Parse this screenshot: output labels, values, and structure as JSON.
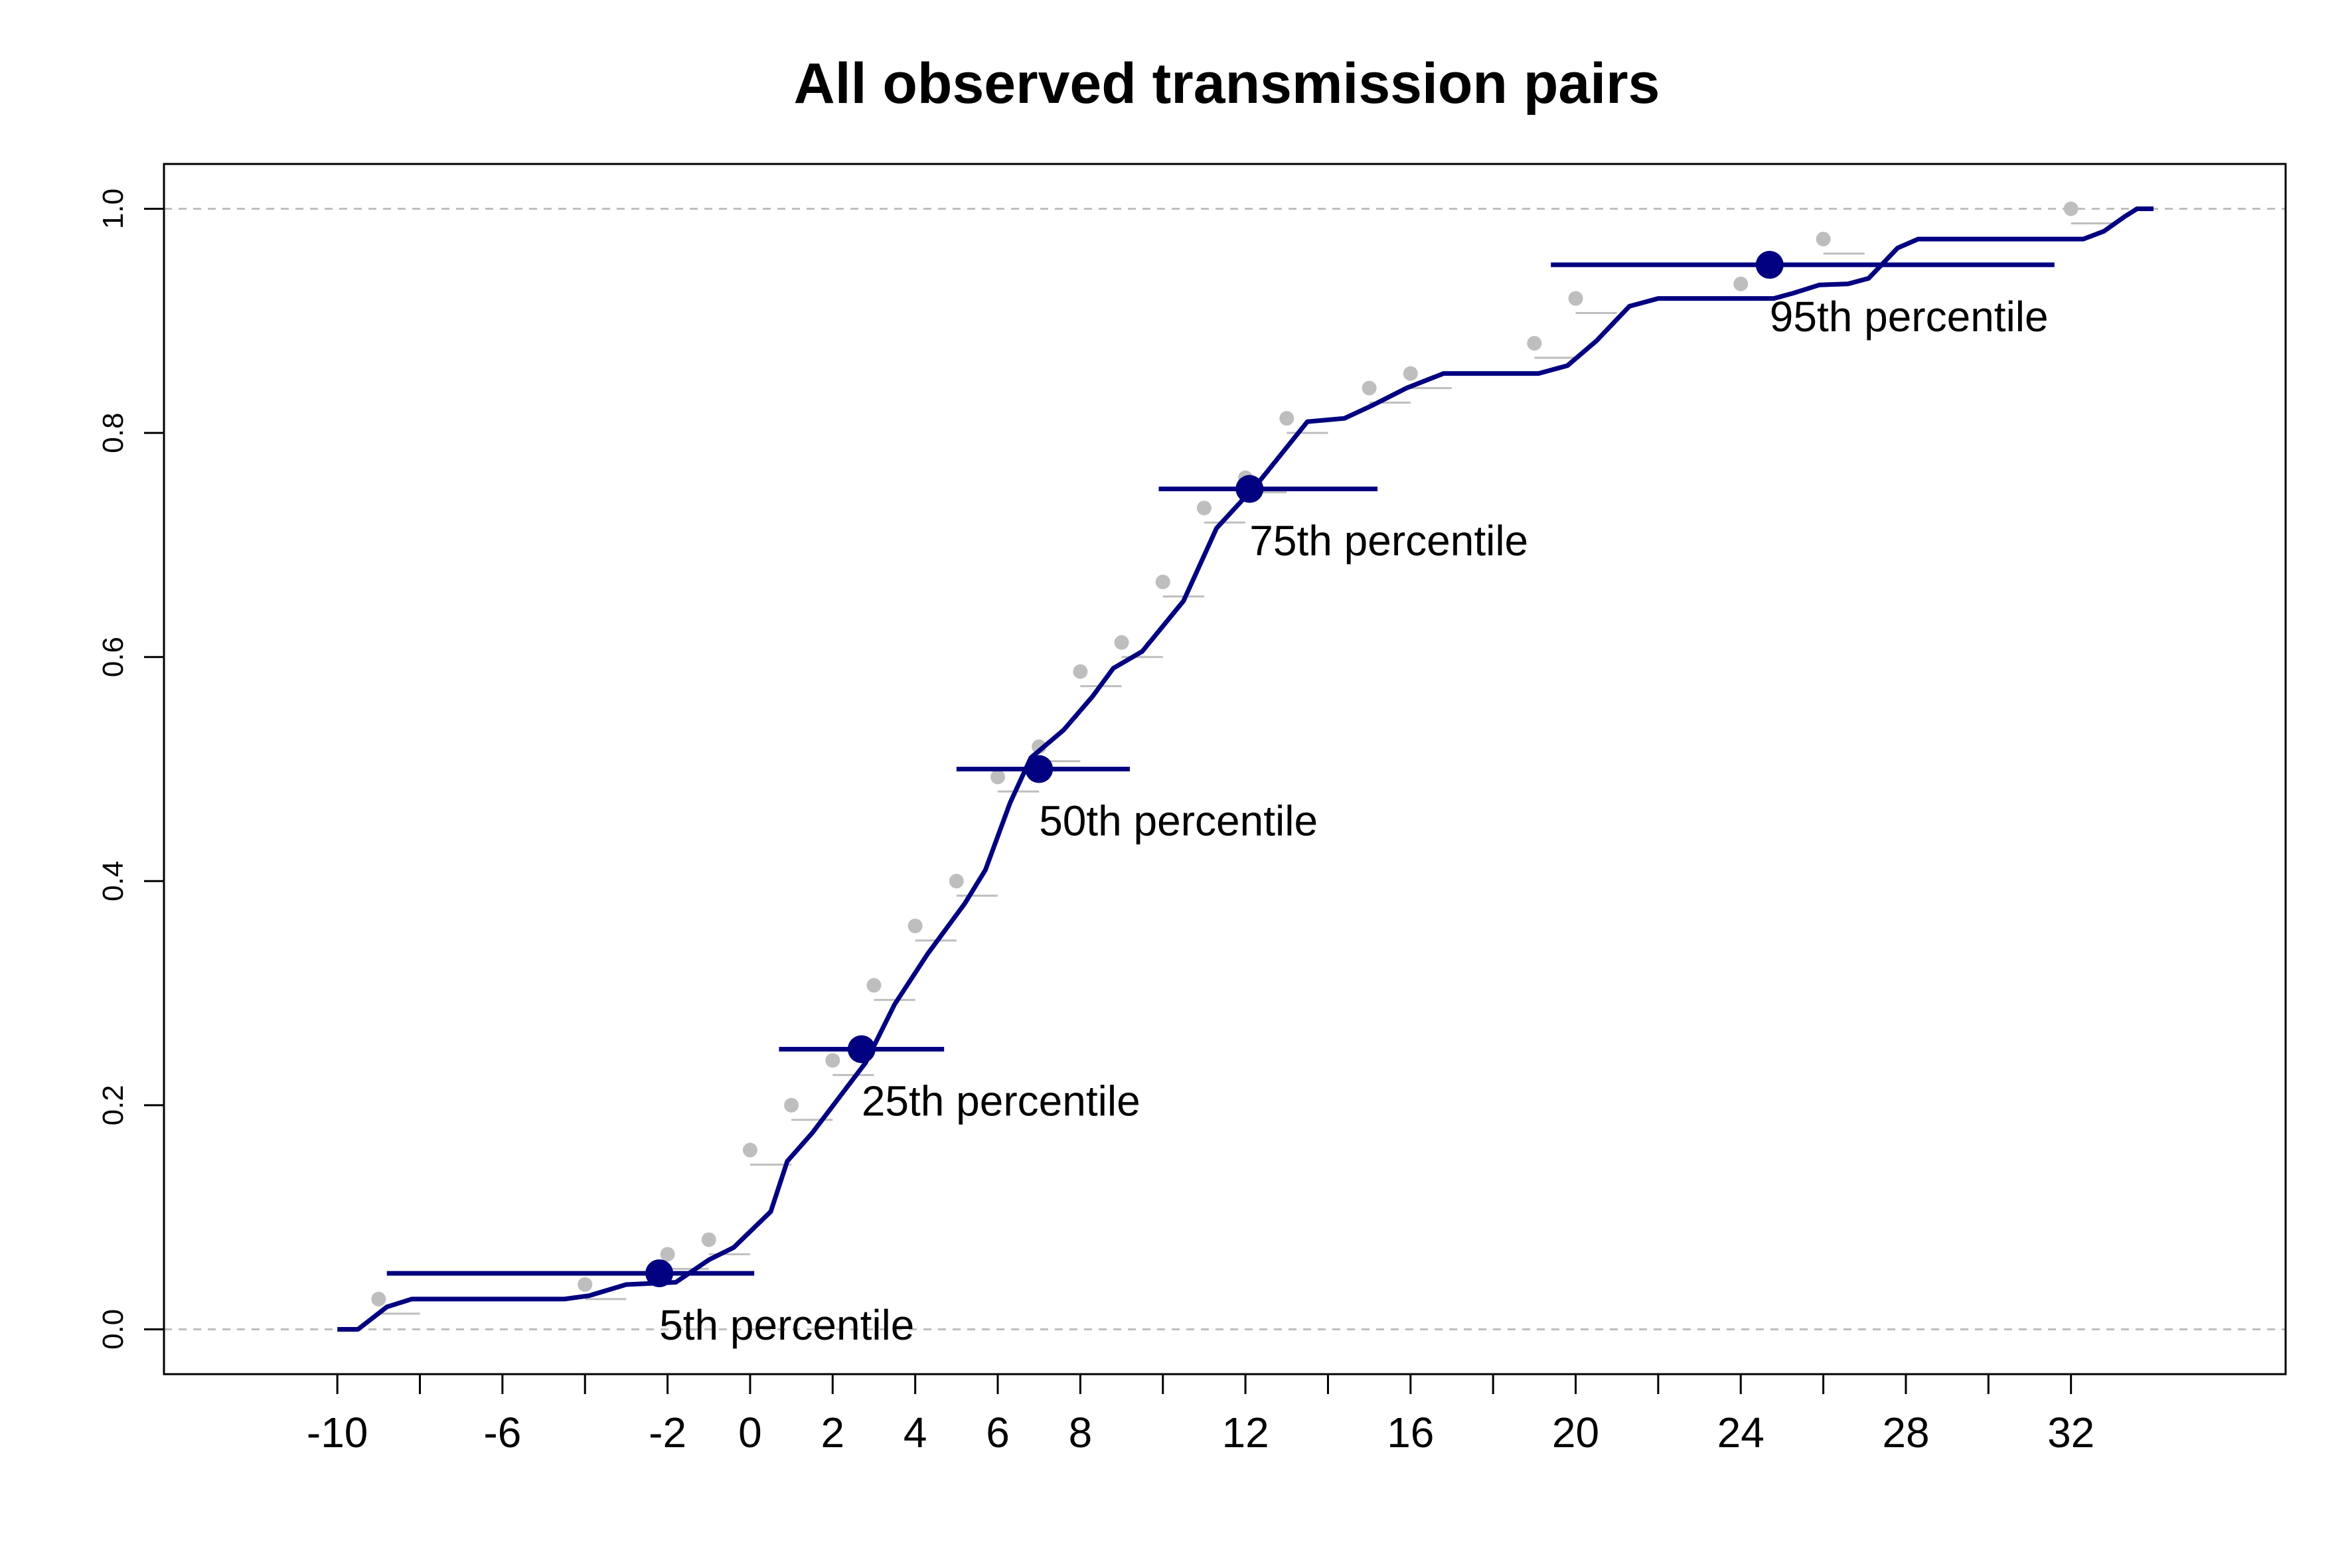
{
  "chart_data": {
    "type": "line",
    "title": "All observed transmission pairs",
    "xlabel": "",
    "ylabel": "",
    "xlim": [
      -14.2,
      37.2
    ],
    "ylim": [
      -0.04,
      1.04
    ],
    "x_tick_values": [
      -10,
      -8,
      -6,
      -4,
      -2,
      0,
      2,
      4,
      6,
      8,
      10,
      12,
      14,
      16,
      18,
      20,
      22,
      24,
      26,
      28,
      30,
      32
    ],
    "x_tick_labels": [
      {
        "value": -10,
        "label": "-10"
      },
      {
        "value": -6,
        "label": "-6"
      },
      {
        "value": -2,
        "label": "-2"
      },
      {
        "value": 0,
        "label": "0"
      },
      {
        "value": 2,
        "label": "2"
      },
      {
        "value": 4,
        "label": "4"
      },
      {
        "value": 6,
        "label": "6"
      },
      {
        "value": 8,
        "label": "8"
      },
      {
        "value": 12,
        "label": "12"
      },
      {
        "value": 16,
        "label": "16"
      },
      {
        "value": 20,
        "label": "20"
      },
      {
        "value": 24,
        "label": "24"
      },
      {
        "value": 28,
        "label": "28"
      },
      {
        "value": 32,
        "label": "32"
      }
    ],
    "y_ticks": [
      {
        "value": 0.0,
        "label": "0.0"
      },
      {
        "value": 0.2,
        "label": "0.2"
      },
      {
        "value": 0.4,
        "label": "0.4"
      },
      {
        "value": 0.6,
        "label": "0.6"
      },
      {
        "value": 0.8,
        "label": "0.8"
      },
      {
        "value": 1.0,
        "label": "1.0"
      }
    ],
    "reference_lines": [
      0.0,
      1.0
    ],
    "grid": false,
    "colors": {
      "curve": "#000080",
      "observed": "#bebebe",
      "reference": "#bebebe",
      "axis": "#000000"
    },
    "observed_points": [
      {
        "x": -9,
        "y": 0.027
      },
      {
        "x": -4,
        "y": 0.04
      },
      {
        "x": -2,
        "y": 0.067
      },
      {
        "x": -1,
        "y": 0.08
      },
      {
        "x": 0,
        "y": 0.16
      },
      {
        "x": 1,
        "y": 0.2
      },
      {
        "x": 2,
        "y": 0.24
      },
      {
        "x": 3,
        "y": 0.307
      },
      {
        "x": 4,
        "y": 0.36
      },
      {
        "x": 5,
        "y": 0.4
      },
      {
        "x": 6,
        "y": 0.493
      },
      {
        "x": 7,
        "y": 0.52
      },
      {
        "x": 8,
        "y": 0.587
      },
      {
        "x": 9,
        "y": 0.613
      },
      {
        "x": 10,
        "y": 0.667
      },
      {
        "x": 11,
        "y": 0.733
      },
      {
        "x": 12,
        "y": 0.76
      },
      {
        "x": 13,
        "y": 0.813
      },
      {
        "x": 15,
        "y": 0.84
      },
      {
        "x": 16,
        "y": 0.853
      },
      {
        "x": 19,
        "y": 0.88
      },
      {
        "x": 20,
        "y": 0.92
      },
      {
        "x": 24,
        "y": 0.933
      },
      {
        "x": 26,
        "y": 0.973
      },
      {
        "x": 32,
        "y": 1.0
      }
    ],
    "fitted_curve": [
      {
        "x": -10,
        "y": 0.0
      },
      {
        "x": -9.5,
        "y": 0.0
      },
      {
        "x": -8.8,
        "y": 0.02
      },
      {
        "x": -8.2,
        "y": 0.027
      },
      {
        "x": -4.5,
        "y": 0.027
      },
      {
        "x": -3.9,
        "y": 0.03
      },
      {
        "x": -3.0,
        "y": 0.04
      },
      {
        "x": -1.8,
        "y": 0.042
      },
      {
        "x": -1.0,
        "y": 0.062
      },
      {
        "x": -0.4,
        "y": 0.073
      },
      {
        "x": 0.5,
        "y": 0.105
      },
      {
        "x": 0.9,
        "y": 0.15
      },
      {
        "x": 1.5,
        "y": 0.175
      },
      {
        "x": 2.8,
        "y": 0.238
      },
      {
        "x": 3.5,
        "y": 0.29
      },
      {
        "x": 4.3,
        "y": 0.335
      },
      {
        "x": 5.2,
        "y": 0.38
      },
      {
        "x": 5.7,
        "y": 0.41
      },
      {
        "x": 6.3,
        "y": 0.47
      },
      {
        "x": 6.8,
        "y": 0.51
      },
      {
        "x": 7.6,
        "y": 0.535
      },
      {
        "x": 8.3,
        "y": 0.565
      },
      {
        "x": 8.8,
        "y": 0.59
      },
      {
        "x": 9.5,
        "y": 0.605
      },
      {
        "x": 10.5,
        "y": 0.65
      },
      {
        "x": 11.3,
        "y": 0.715
      },
      {
        "x": 12.3,
        "y": 0.755
      },
      {
        "x": 13.5,
        "y": 0.81
      },
      {
        "x": 14.4,
        "y": 0.813
      },
      {
        "x": 15.1,
        "y": 0.825
      },
      {
        "x": 15.9,
        "y": 0.84
      },
      {
        "x": 16.8,
        "y": 0.853
      },
      {
        "x": 19.1,
        "y": 0.853
      },
      {
        "x": 19.8,
        "y": 0.86
      },
      {
        "x": 20.5,
        "y": 0.882
      },
      {
        "x": 21.3,
        "y": 0.913
      },
      {
        "x": 22.0,
        "y": 0.92
      },
      {
        "x": 24.8,
        "y": 0.92
      },
      {
        "x": 25.3,
        "y": 0.925
      },
      {
        "x": 25.9,
        "y": 0.932
      },
      {
        "x": 26.6,
        "y": 0.933
      },
      {
        "x": 27.1,
        "y": 0.938
      },
      {
        "x": 27.8,
        "y": 0.965
      },
      {
        "x": 28.3,
        "y": 0.973
      },
      {
        "x": 32.3,
        "y": 0.973
      },
      {
        "x": 32.8,
        "y": 0.98
      },
      {
        "x": 33.3,
        "y": 0.993
      },
      {
        "x": 33.6,
        "y": 1.0
      },
      {
        "x": 34.0,
        "y": 1.0
      }
    ],
    "percentiles": [
      {
        "label": "5th percentile",
        "x": -2.2,
        "y": 0.05,
        "lower": -8.8,
        "upper": 0.1
      },
      {
        "label": "25th percentile",
        "x": 2.7,
        "y": 0.25,
        "lower": 0.7,
        "upper": 4.7
      },
      {
        "label": "50th percentile",
        "x": 7.0,
        "y": 0.5,
        "lower": 5.0,
        "upper": 9.2
      },
      {
        "label": "75th percentile",
        "x": 12.1,
        "y": 0.75,
        "lower": 9.9,
        "upper": 15.2
      },
      {
        "label": "95th percentile",
        "x": 24.7,
        "y": 0.95,
        "lower": 19.4,
        "upper": 31.6
      }
    ]
  }
}
